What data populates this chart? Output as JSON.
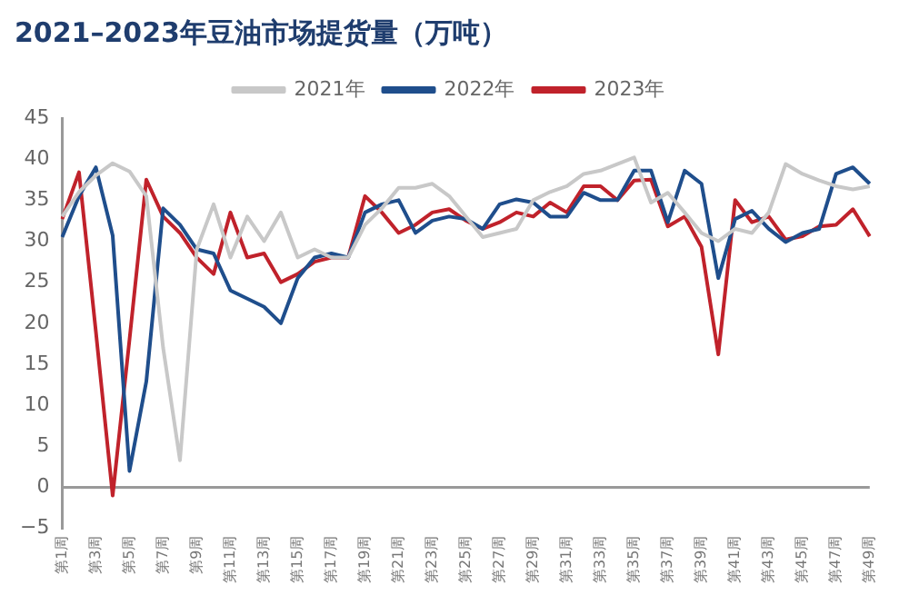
{
  "chart_data": {
    "type": "line",
    "title": "2021–2023年豆油市场提货量（万吨）",
    "categories": [
      "第1周",
      null,
      "第3周",
      null,
      "第5周",
      null,
      "第7周",
      null,
      "第9周",
      null,
      "第11周",
      null,
      "第13周",
      null,
      "第15周",
      null,
      "第17周",
      null,
      "第19周",
      null,
      "第21周",
      null,
      "第23周",
      null,
      "第25周",
      null,
      "第27周",
      null,
      "第29周",
      null,
      "第31周",
      null,
      "第33周",
      null,
      "第35周",
      null,
      "第37周",
      null,
      "第39周",
      null,
      "第41周",
      null,
      "第43周",
      null,
      "第45周",
      null,
      "第47周",
      null,
      "第49周"
    ],
    "series": [
      {
        "name": "2021年",
        "color": "#c8c8c8",
        "values": [
          33,
          36,
          38,
          39.5,
          38.5,
          35.5,
          17,
          3.3,
          29,
          34.5,
          28,
          33,
          30,
          33.5,
          28,
          29,
          28,
          28,
          32,
          34,
          36.5,
          36.5,
          37,
          35.5,
          33,
          30.5,
          31,
          31.5,
          35,
          36,
          36.7,
          38.2,
          38.6,
          39.4,
          40.2,
          34.7,
          35.9,
          33.5,
          31,
          30,
          31.5,
          31,
          33.5,
          39.4,
          38.2,
          37.4,
          36.7,
          36.3,
          36.7
        ]
      },
      {
        "name": "2022年",
        "color": "#1f4e8c",
        "values": [
          30.5,
          35.5,
          39,
          30.7,
          2,
          12.9,
          34,
          32,
          29,
          28.5,
          24,
          23,
          22,
          20,
          25.5,
          28,
          28.5,
          28,
          33.5,
          34.5,
          35,
          31,
          32.5,
          33,
          32.7,
          31.5,
          34.5,
          35.1,
          34.7,
          33,
          33,
          35.9,
          35,
          35,
          38.6,
          38.6,
          32.3,
          38.6,
          37,
          25.5,
          32.7,
          33.7,
          31.5,
          29.9,
          31,
          31.5,
          38.2,
          39,
          37
        ]
      },
      {
        "name": "2023年",
        "color": "#c0222b",
        "values": [
          32.7,
          38.4,
          19,
          -1,
          18,
          37.5,
          33,
          31,
          28,
          26,
          33.5,
          28,
          28.5,
          25,
          26,
          27.5,
          28,
          28,
          35.5,
          33.5,
          31,
          32,
          33.5,
          33.9,
          32.5,
          31.5,
          32.3,
          33.5,
          33,
          34.7,
          33.5,
          36.7,
          36.7,
          35,
          37.4,
          37.5,
          31.8,
          33,
          29.3,
          16.2,
          35,
          32.3,
          33,
          30.2,
          30.6,
          31.8,
          32,
          33.9,
          30.6
        ]
      }
    ],
    "ylim": [
      -5,
      45
    ],
    "yticks": [
      -5,
      0,
      5,
      10,
      15,
      20,
      25,
      30,
      35,
      40,
      45
    ],
    "ref_lines": [
      {
        "axis": "y",
        "value": 0,
        "color": "#999999"
      }
    ],
    "grid": false,
    "legend": "top",
    "marker": "none",
    "line_style": "solid"
  }
}
